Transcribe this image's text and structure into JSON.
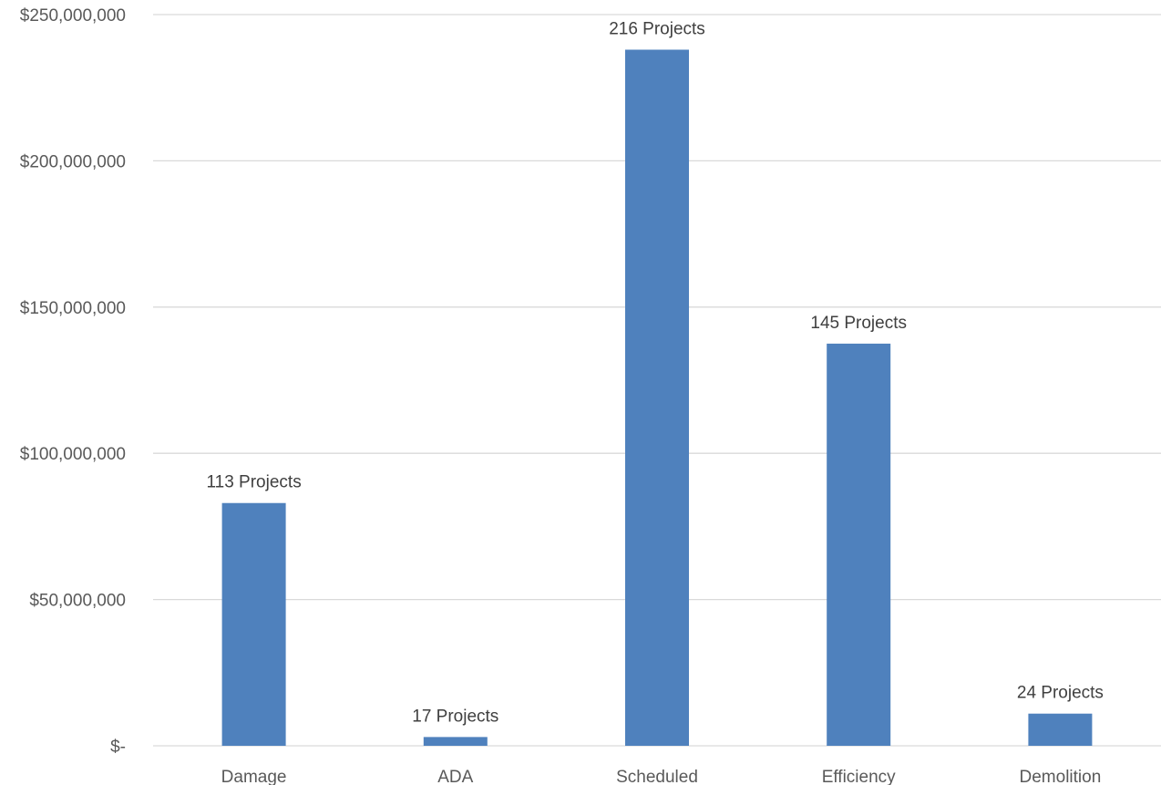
{
  "chart_data": {
    "type": "bar",
    "title": "",
    "xlabel": "",
    "ylabel": "",
    "categories": [
      "Damage",
      "ADA",
      "Scheduled",
      "Efficiency",
      "Demolition"
    ],
    "values": [
      83000000,
      3000000,
      238000000,
      137500000,
      11000000
    ],
    "data_labels": [
      "113 Projects",
      "17 Projects",
      "216 Projects",
      "145 Projects",
      "24 Projects"
    ],
    "ylim": [
      0,
      250000000
    ],
    "y_ticks": [
      0,
      50000000,
      100000000,
      150000000,
      200000000,
      250000000
    ],
    "y_tick_labels": [
      "$-",
      "$50,000,000",
      "$100,000,000",
      "$150,000,000",
      "$200,000,000",
      "$250,000,000"
    ],
    "grid": true,
    "legend": "none",
    "colors": {
      "bar": "#4f81bd",
      "grid": "#d9d9d9",
      "text": "#595959",
      "data_label": "#404040"
    }
  }
}
